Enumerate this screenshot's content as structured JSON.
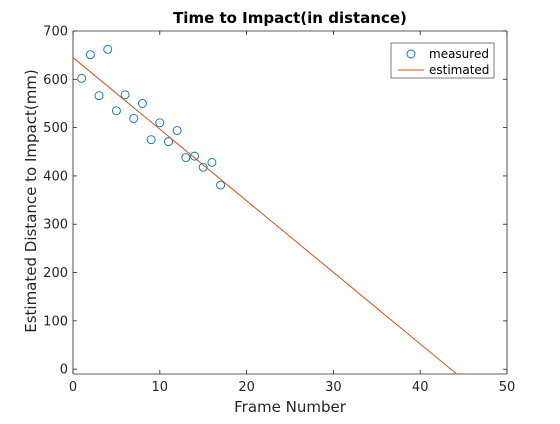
{
  "chart_data": {
    "type": "scatter",
    "title": "Time to Impact(in distance)",
    "xlabel": "Frame Number",
    "ylabel": "Estimated Distance to Impact(mm)",
    "xlim": [
      0,
      50
    ],
    "ylim": [
      -10,
      700
    ],
    "xticks": [
      0,
      10,
      20,
      30,
      40,
      50
    ],
    "yticks": [
      0,
      100,
      200,
      300,
      400,
      500,
      600,
      700
    ],
    "grid": false,
    "legend_position": "top-right",
    "series": [
      {
        "name": "measured",
        "kind": "markers",
        "marker": "circle",
        "color": "#0072BD",
        "x": [
          1,
          2,
          3,
          4,
          5,
          6,
          7,
          8,
          9,
          10,
          11,
          12,
          13,
          14,
          15,
          16,
          17
        ],
        "y": [
          602,
          651,
          566,
          662,
          535,
          568,
          519,
          550,
          475,
          510,
          471,
          494,
          438,
          441,
          418,
          428,
          381
        ]
      },
      {
        "name": "estimated",
        "kind": "line",
        "color": "#D95319",
        "x": [
          0,
          44.2
        ],
        "y": [
          645,
          -10
        ]
      }
    ]
  }
}
